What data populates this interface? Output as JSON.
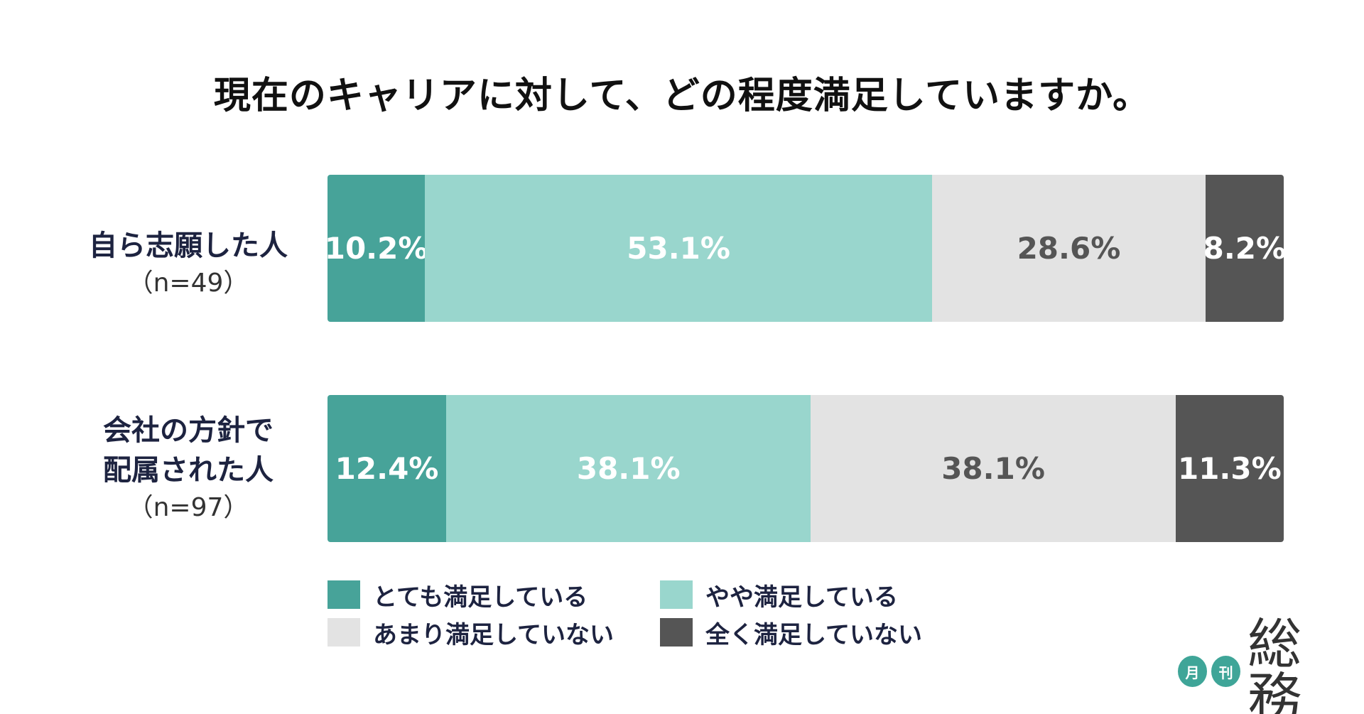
{
  "chart_data": {
    "type": "stacked-bar-horizontal",
    "title": "現在のキャリアに対して、どの程度満足していますか。",
    "categories": [
      {
        "name_lines": [
          "自ら志願した人"
        ],
        "n": "（n=49）"
      },
      {
        "name_lines": [
          "会社の方針で",
          "配属された人"
        ],
        "n": "（n=97）"
      }
    ],
    "series": [
      {
        "name": "とても満足している",
        "color": "#47a399",
        "text_color": "#ffffff",
        "values": [
          10.2,
          12.4
        ]
      },
      {
        "name": "やや満足している",
        "color": "#99d6cd",
        "text_color": "#ffffff",
        "values": [
          53.1,
          38.1
        ]
      },
      {
        "name": "あまり満足していない",
        "color": "#e3e3e3",
        "text_color": "#555555",
        "values": [
          28.6,
          38.1
        ]
      },
      {
        "name": "全く満足していない",
        "color": "#555555",
        "text_color": "#ffffff",
        "values": [
          8.2,
          11.3
        ]
      }
    ],
    "value_labels": [
      [
        "10.2%",
        "53.1%",
        "28.6%",
        "8.2%"
      ],
      [
        "12.4%",
        "38.1%",
        "38.1%",
        "11.3%"
      ]
    ],
    "xlim": [
      0,
      100
    ],
    "unit": "%",
    "legend_position": "bottom"
  },
  "logo": {
    "circle1": "月",
    "circle2": "刊",
    "word": "総務",
    "color": "#3fa598"
  }
}
